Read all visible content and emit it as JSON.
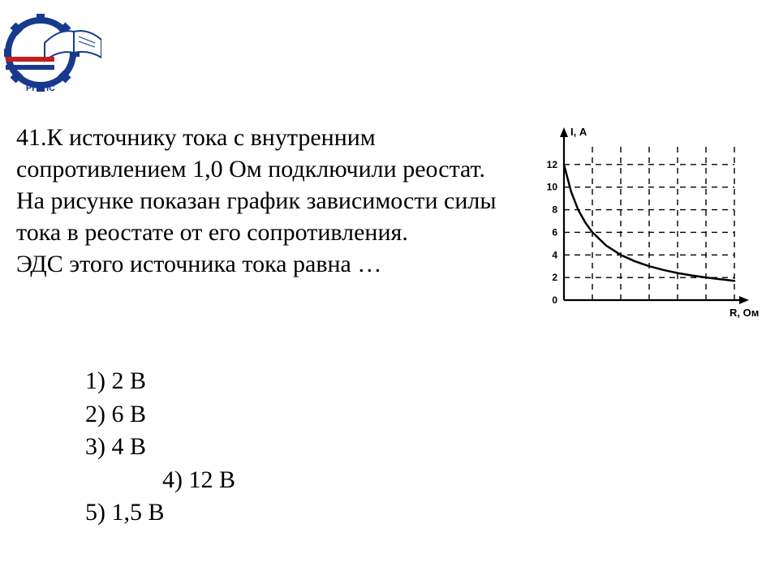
{
  "logo": {
    "text_top": "РГУПС",
    "gear_color": "#173a8d",
    "book_page_color": "#ffffff",
    "book_outline": "#173a8d",
    "rail_color": "#c41e1e"
  },
  "question": {
    "number": "41.",
    "text_line1": "К источнику тока с внутренним",
    "text_line2": "сопротивлением 1,0 Ом подключили",
    "text_line3": "реостат. На рисунке показан график",
    "text_line4": "зависимости силы тока в реостате от",
    "text_line5": "его сопротивления.",
    "text_line6": "ЭДС этого источника тока равна …"
  },
  "answers": {
    "a1": "1) 2 В",
    "a2": "2) 6 В",
    "a3": "3) 4 В",
    "a4": "4) 12 В",
    "a5": "5) 1,5 В"
  },
  "chart": {
    "type": "line",
    "y_label": "I, А",
    "x_label": "R, Ом",
    "xlim": [
      0,
      6
    ],
    "ylim": [
      0,
      14
    ],
    "x_ticks": [
      0,
      1,
      2,
      3,
      4,
      5,
      6
    ],
    "y_ticks": [
      0,
      2,
      4,
      6,
      8,
      10,
      12
    ],
    "y_tick_labels": [
      "0",
      "2",
      "4",
      "6",
      "8",
      "10",
      "12"
    ],
    "curve_points": [
      {
        "x": 0.0,
        "y": 12.0
      },
      {
        "x": 0.25,
        "y": 9.6
      },
      {
        "x": 0.5,
        "y": 8.0
      },
      {
        "x": 0.75,
        "y": 6.86
      },
      {
        "x": 1.0,
        "y": 6.0
      },
      {
        "x": 1.5,
        "y": 4.8
      },
      {
        "x": 2.0,
        "y": 4.0
      },
      {
        "x": 2.5,
        "y": 3.43
      },
      {
        "x": 3.0,
        "y": 3.0
      },
      {
        "x": 3.5,
        "y": 2.67
      },
      {
        "x": 4.0,
        "y": 2.4
      },
      {
        "x": 4.5,
        "y": 2.18
      },
      {
        "x": 5.0,
        "y": 2.0
      },
      {
        "x": 5.5,
        "y": 1.85
      },
      {
        "x": 6.0,
        "y": 1.71
      }
    ],
    "axis_color": "#000000",
    "grid_style": "dashed",
    "grid_color": "#000000",
    "curve_color": "#000000",
    "curve_width": 2.5,
    "background": "#ffffff",
    "label_fontsize": 12
  }
}
